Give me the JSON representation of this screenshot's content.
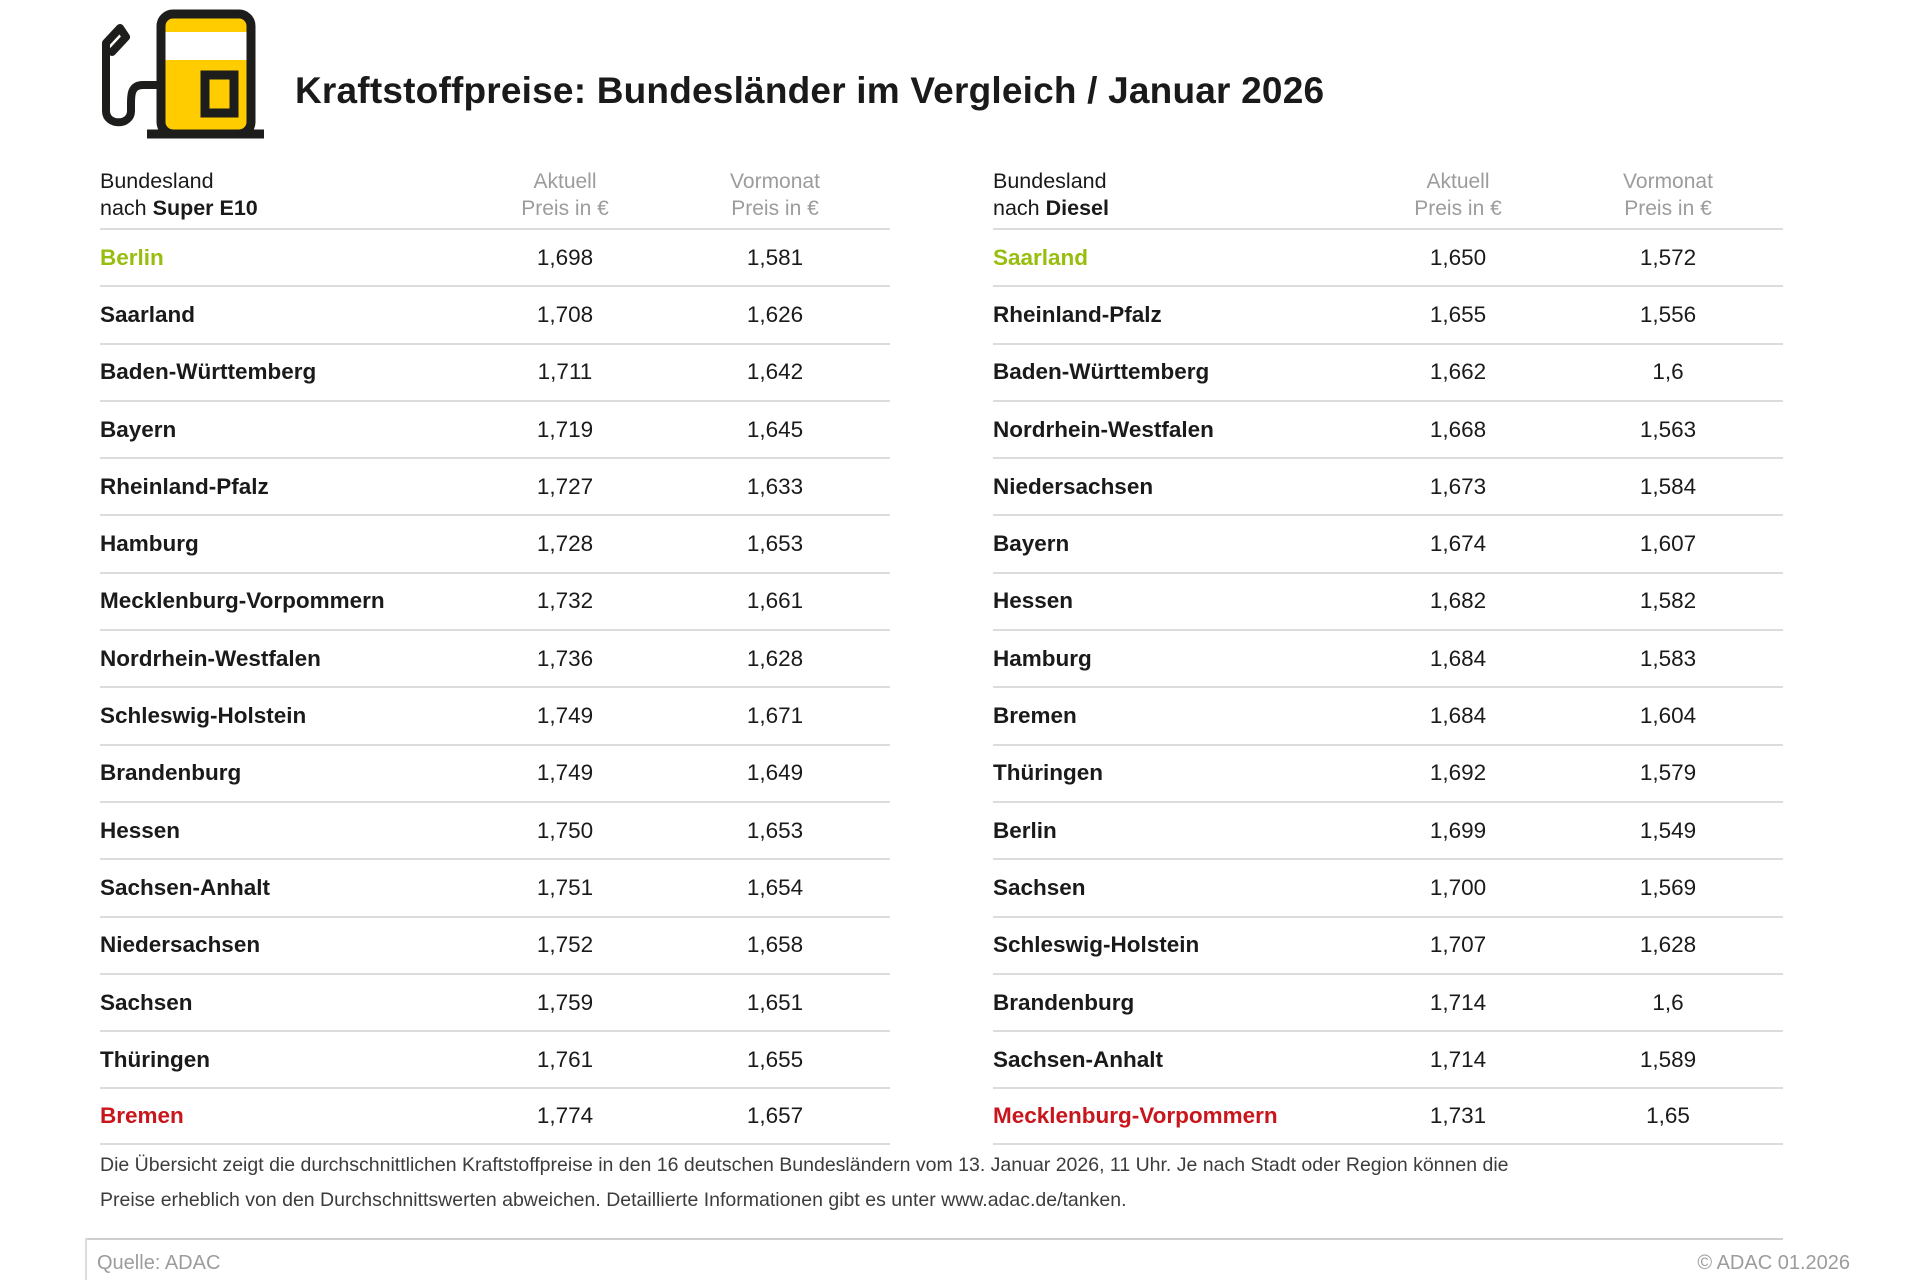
{
  "header": {
    "title": "Kraftstoffpreise: Bundesländer im Vergleich / Januar 2026"
  },
  "colors": {
    "accent_green": "#97be0d",
    "accent_red": "#c8161c",
    "brand_yellow": "#ffcc00",
    "icon_outline": "#1d1d1b",
    "header_gray": "#9c9c9c",
    "text_dark": "#1a1a1a",
    "divider_gray": "#dcdcdc"
  },
  "tables": [
    {
      "id": "super-e10",
      "header": {
        "col1_line1": "Bundesland",
        "col1_line2_prefix": "nach ",
        "col1_line2_bold": "Super E10",
        "col2_line1": "Aktuell",
        "col2_line2": "Preis in €",
        "col3_line1": "Vormonat",
        "col3_line2": "Preis in €"
      },
      "rows": [
        {
          "name": "Berlin",
          "aktuell": "1,698",
          "vormonat": "1,581",
          "highlight": "green"
        },
        {
          "name": "Saarland",
          "aktuell": "1,708",
          "vormonat": "1,626"
        },
        {
          "name": "Baden-Württemberg",
          "aktuell": "1,711",
          "vormonat": "1,642"
        },
        {
          "name": "Bayern",
          "aktuell": "1,719",
          "vormonat": "1,645"
        },
        {
          "name": "Rheinland-Pfalz",
          "aktuell": "1,727",
          "vormonat": "1,633"
        },
        {
          "name": "Hamburg",
          "aktuell": "1,728",
          "vormonat": "1,653"
        },
        {
          "name": "Mecklenburg-Vorpommern",
          "aktuell": "1,732",
          "vormonat": "1,661"
        },
        {
          "name": "Nordrhein-Westfalen",
          "aktuell": "1,736",
          "vormonat": "1,628"
        },
        {
          "name": "Schleswig-Holstein",
          "aktuell": "1,749",
          "vormonat": "1,671"
        },
        {
          "name": "Brandenburg",
          "aktuell": "1,749",
          "vormonat": "1,649"
        },
        {
          "name": "Hessen",
          "aktuell": "1,750",
          "vormonat": "1,653"
        },
        {
          "name": "Sachsen-Anhalt",
          "aktuell": "1,751",
          "vormonat": "1,654"
        },
        {
          "name": "Niedersachsen",
          "aktuell": "1,752",
          "vormonat": "1,658"
        },
        {
          "name": "Sachsen",
          "aktuell": "1,759",
          "vormonat": "1,651"
        },
        {
          "name": "Thüringen",
          "aktuell": "1,761",
          "vormonat": "1,655"
        },
        {
          "name": "Bremen",
          "aktuell": "1,774",
          "vormonat": "1,657",
          "highlight": "red"
        }
      ]
    },
    {
      "id": "diesel",
      "header": {
        "col1_line1": "Bundesland",
        "col1_line2_prefix": "nach ",
        "col1_line2_bold": "Diesel",
        "col2_line1": "Aktuell",
        "col2_line2": "Preis in €",
        "col3_line1": "Vormonat",
        "col3_line2": "Preis in €"
      },
      "rows": [
        {
          "name": "Saarland",
          "aktuell": "1,650",
          "vormonat": "1,572",
          "highlight": "green"
        },
        {
          "name": "Rheinland-Pfalz",
          "aktuell": "1,655",
          "vormonat": "1,556"
        },
        {
          "name": "Baden-Württemberg",
          "aktuell": "1,662",
          "vormonat": "1,6"
        },
        {
          "name": "Nordrhein-Westfalen",
          "aktuell": "1,668",
          "vormonat": "1,563"
        },
        {
          "name": "Niedersachsen",
          "aktuell": "1,673",
          "vormonat": "1,584"
        },
        {
          "name": "Bayern",
          "aktuell": "1,674",
          "vormonat": "1,607"
        },
        {
          "name": "Hessen",
          "aktuell": "1,682",
          "vormonat": "1,582"
        },
        {
          "name": "Hamburg",
          "aktuell": "1,684",
          "vormonat": "1,583"
        },
        {
          "name": "Bremen",
          "aktuell": "1,684",
          "vormonat": "1,604"
        },
        {
          "name": "Thüringen",
          "aktuell": "1,692",
          "vormonat": "1,579"
        },
        {
          "name": "Berlin",
          "aktuell": "1,699",
          "vormonat": "1,549"
        },
        {
          "name": "Sachsen",
          "aktuell": "1,700",
          "vormonat": "1,569"
        },
        {
          "name": "Schleswig-Holstein",
          "aktuell": "1,707",
          "vormonat": "1,628"
        },
        {
          "name": "Brandenburg",
          "aktuell": "1,714",
          "vormonat": "1,6"
        },
        {
          "name": "Sachsen-Anhalt",
          "aktuell": "1,714",
          "vormonat": "1,589"
        },
        {
          "name": "Mecklenburg-Vorpommern",
          "aktuell": "1,731",
          "vormonat": "1,65",
          "highlight": "red"
        }
      ]
    }
  ],
  "footnote": {
    "line1": "Die Übersicht zeigt die durchschnittlichen Kraftstoffpreise in den 16 deutschen Bundesländern vom 13. Januar 2026, 11 Uhr. Je nach Stadt oder Region können die",
    "line2": "Preise erheblich von den Durchschnittswerten abweichen. Detaillierte Informationen gibt es unter www.adac.de/tanken."
  },
  "footer": {
    "source": "Quelle: ADAC",
    "copyright": "© ADAC 01.2026"
  },
  "chart_data": [
    {
      "type": "table",
      "title": "Bundesland nach Super E10",
      "columns": [
        "Bundesland",
        "Aktuell Preis in €",
        "Vormonat Preis in €"
      ],
      "rows": [
        [
          "Berlin",
          1.698,
          1.581
        ],
        [
          "Saarland",
          1.708,
          1.626
        ],
        [
          "Baden-Württemberg",
          1.711,
          1.642
        ],
        [
          "Bayern",
          1.719,
          1.645
        ],
        [
          "Rheinland-Pfalz",
          1.727,
          1.633
        ],
        [
          "Hamburg",
          1.728,
          1.653
        ],
        [
          "Mecklenburg-Vorpommern",
          1.732,
          1.661
        ],
        [
          "Nordrhein-Westfalen",
          1.736,
          1.628
        ],
        [
          "Schleswig-Holstein",
          1.749,
          1.671
        ],
        [
          "Brandenburg",
          1.749,
          1.649
        ],
        [
          "Hessen",
          1.75,
          1.653
        ],
        [
          "Sachsen-Anhalt",
          1.751,
          1.654
        ],
        [
          "Niedersachsen",
          1.752,
          1.658
        ],
        [
          "Sachsen",
          1.759,
          1.651
        ],
        [
          "Thüringen",
          1.761,
          1.655
        ],
        [
          "Bremen",
          1.774,
          1.657
        ]
      ],
      "annotations": {
        "cheapest": "Berlin",
        "most_expensive": "Bremen"
      }
    },
    {
      "type": "table",
      "title": "Bundesland nach Diesel",
      "columns": [
        "Bundesland",
        "Aktuell Preis in €",
        "Vormonat Preis in €"
      ],
      "rows": [
        [
          "Saarland",
          1.65,
          1.572
        ],
        [
          "Rheinland-Pfalz",
          1.655,
          1.556
        ],
        [
          "Baden-Württemberg",
          1.662,
          1.6
        ],
        [
          "Nordrhein-Westfalen",
          1.668,
          1.563
        ],
        [
          "Niedersachsen",
          1.673,
          1.584
        ],
        [
          "Bayern",
          1.674,
          1.607
        ],
        [
          "Hessen",
          1.682,
          1.582
        ],
        [
          "Hamburg",
          1.684,
          1.583
        ],
        [
          "Bremen",
          1.684,
          1.604
        ],
        [
          "Thüringen",
          1.692,
          1.579
        ],
        [
          "Berlin",
          1.699,
          1.549
        ],
        [
          "Sachsen",
          1.7,
          1.569
        ],
        [
          "Schleswig-Holstein",
          1.707,
          1.628
        ],
        [
          "Brandenburg",
          1.714,
          1.6
        ],
        [
          "Sachsen-Anhalt",
          1.714,
          1.589
        ],
        [
          "Mecklenburg-Vorpommern",
          1.731,
          1.65
        ]
      ],
      "annotations": {
        "cheapest": "Saarland",
        "most_expensive": "Mecklenburg-Vorpommern"
      }
    }
  ]
}
